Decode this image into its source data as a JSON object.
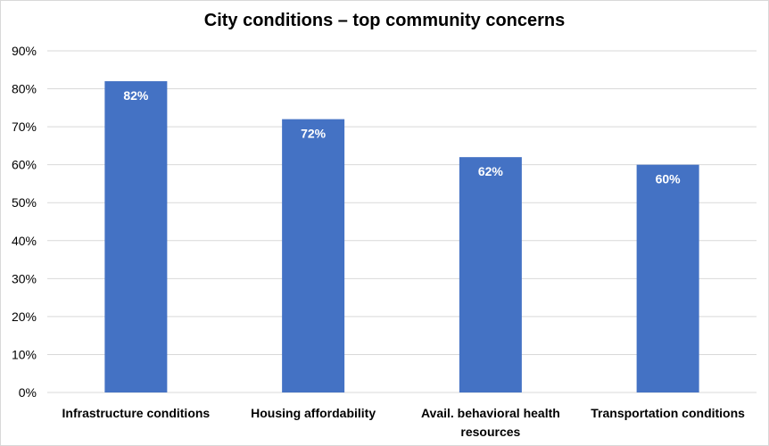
{
  "chart_data": {
    "type": "bar",
    "title": "City conditions – top community concerns",
    "categories": [
      [
        "Infrastructure conditions"
      ],
      [
        "Housing affordability"
      ],
      [
        "Avail. behavioral health",
        "resources"
      ],
      [
        "Transportation conditions"
      ]
    ],
    "values": [
      82,
      72,
      62,
      60
    ],
    "data_labels": [
      "82%",
      "72%",
      "62%",
      "60%"
    ],
    "y_ticks": [
      0,
      10,
      20,
      30,
      40,
      50,
      60,
      70,
      80,
      90
    ],
    "y_tick_labels": [
      "0%",
      "10%",
      "20%",
      "30%",
      "40%",
      "50%",
      "60%",
      "70%",
      "80%",
      "90%"
    ],
    "ylim": [
      0,
      90
    ],
    "xlabel": "",
    "ylabel": "",
    "grid": true,
    "legend": false,
    "bar_color": "#4472c4",
    "grid_color": "#d9d9d9"
  }
}
